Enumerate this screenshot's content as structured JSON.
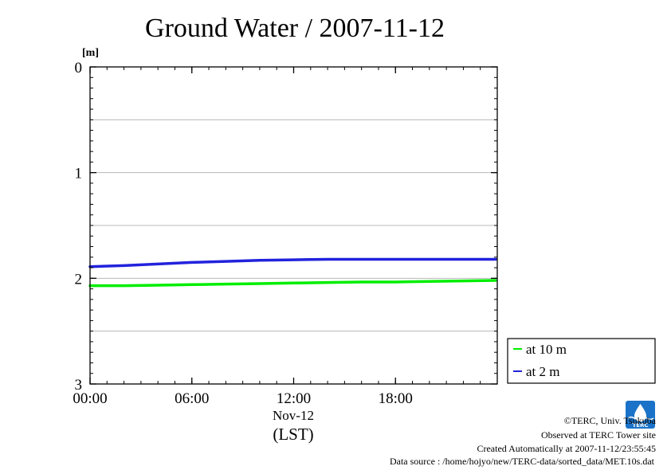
{
  "chart_data": {
    "type": "line",
    "title": "Ground Water / 2007-11-12",
    "y_unit": "[m]",
    "ylim": [
      0,
      3
    ],
    "y_inverted": true,
    "y_ticks": [
      "0",
      "1",
      "2",
      "3"
    ],
    "x_ticks": [
      "00:00",
      "06:00",
      "12:00",
      "18:00"
    ],
    "x_hours": [
      0,
      6,
      12,
      18
    ],
    "x_range_hours": [
      0,
      24
    ],
    "x_date_label": "Nov-12",
    "x_tz_label": "(LST)",
    "grid_y": [
      0.5,
      1.0,
      1.5,
      2.0,
      2.5
    ],
    "legend_position": "right",
    "x": [
      0,
      2,
      4,
      6,
      8,
      10,
      12,
      14,
      16,
      18,
      20,
      22,
      24
    ],
    "series": [
      {
        "name": "at 10 m",
        "color": "#00ee00",
        "values": [
          2.07,
          2.07,
          2.065,
          2.06,
          2.055,
          2.05,
          2.045,
          2.04,
          2.035,
          2.035,
          2.03,
          2.025,
          2.02
        ]
      },
      {
        "name": "at 2 m",
        "color": "#2222dd",
        "values": [
          1.89,
          1.88,
          1.865,
          1.85,
          1.84,
          1.83,
          1.825,
          1.82,
          1.82,
          1.82,
          1.82,
          1.82,
          1.82
        ]
      }
    ]
  },
  "credits": {
    "copyright": "©TERC, Univ. Tsukuba",
    "observed": "Observed at TERC Tower site",
    "created": "Created Automatically at 2007-11-12/23:55:45",
    "source": "Data source : /home/hojyo/new/TERC-data/sorted_data/MET.10s.dat"
  },
  "logo": {
    "name": "terc-logo",
    "text": "TERC",
    "color": "#1a73c8"
  }
}
